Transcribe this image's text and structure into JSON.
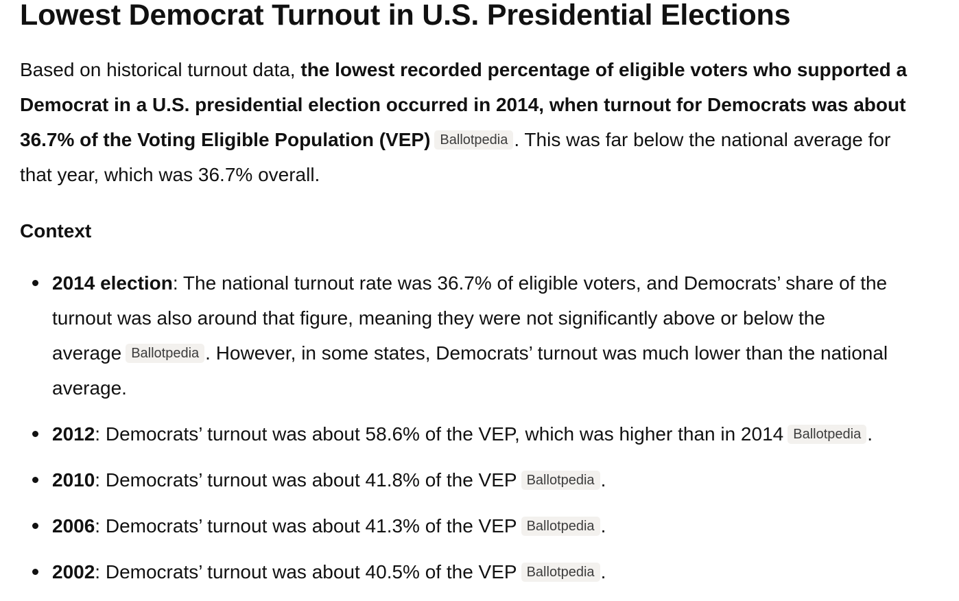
{
  "title": "Lowest Democrat Turnout in U.S. Presidential Elections",
  "intro": {
    "l1_plain": "Based on historical turnout data, ",
    "l1_bold": "the lowest recorded percentage of eligible voters who supported a",
    "l2_bold": "Democrat in a U.S. presidential election occurred in 2014, when turnout for Democrats was about",
    "l3_bold": "36.7% of the Voting Eligible Population (VEP)",
    "l3_citation": "Ballotpedia",
    "l3_plain": ". This was far below the national average for",
    "l4_plain": "that year, which was 36.7% overall."
  },
  "context_heading": "Context",
  "bullets": [
    {
      "label": "2014 election",
      "l1": ": The national turnout rate was 36.7% of eligible voters, and Democrats’ share of the",
      "l2": "turnout was also around that figure, meaning they were not significantly above or below the",
      "l3a": "average",
      "citation": "Ballotpedia",
      "l3b": ". However, in some states, Democrats’ turnout was much lower than the national",
      "l4": "average."
    },
    {
      "label": "2012",
      "text": ": Democrats’ turnout was about 58.6% of the VEP, which was higher than in 2014",
      "citation": "Ballotpedia",
      "end": "."
    },
    {
      "label": "2010",
      "text": ": Democrats’ turnout was about 41.8% of the VEP",
      "citation": "Ballotpedia",
      "end": "."
    },
    {
      "label": "2006",
      "text": ": Democrats’ turnout was about 41.3% of the VEP",
      "citation": "Ballotpedia",
      "end": "."
    },
    {
      "label": "2002",
      "text": ": Democrats’ turnout was about 40.5% of the VEP",
      "citation": "Ballotpedia",
      "end": "."
    }
  ]
}
